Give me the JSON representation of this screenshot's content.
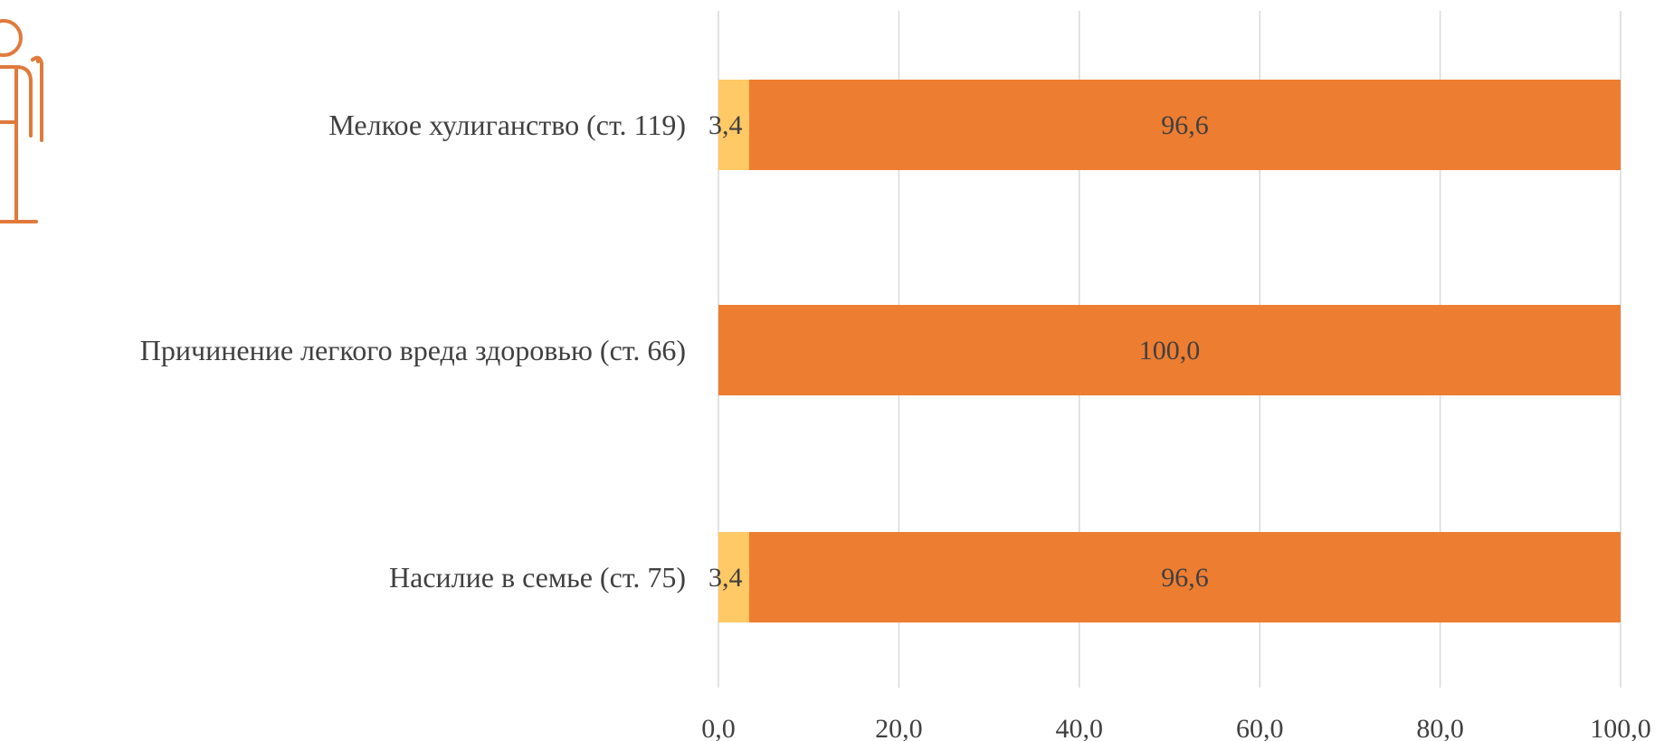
{
  "chart_data": {
    "type": "bar",
    "orientation": "horizontal",
    "stacked": true,
    "categories": [
      "Мелкое хулиганство (ст. 119)",
      "Причинение легкого вреда здоровью (ст. 66)",
      "Насилие в семье (ст. 75)"
    ],
    "series": [
      {
        "values": [
          3.4,
          0,
          3.4
        ],
        "color": "#FFC966",
        "labels": [
          "3,4",
          "",
          "3,4"
        ]
      },
      {
        "values": [
          96.6,
          100,
          96.6
        ],
        "color": "#ED7D31",
        "labels": [
          "96,6",
          "100,0",
          "96,6"
        ]
      }
    ],
    "xticks": [
      "0,0",
      "20,0",
      "40,0",
      "60,0",
      "80,0",
      "100,0"
    ],
    "xlim": [
      0,
      100
    ],
    "grid": true,
    "legend": "none",
    "icon": "elderly-person-icon"
  }
}
